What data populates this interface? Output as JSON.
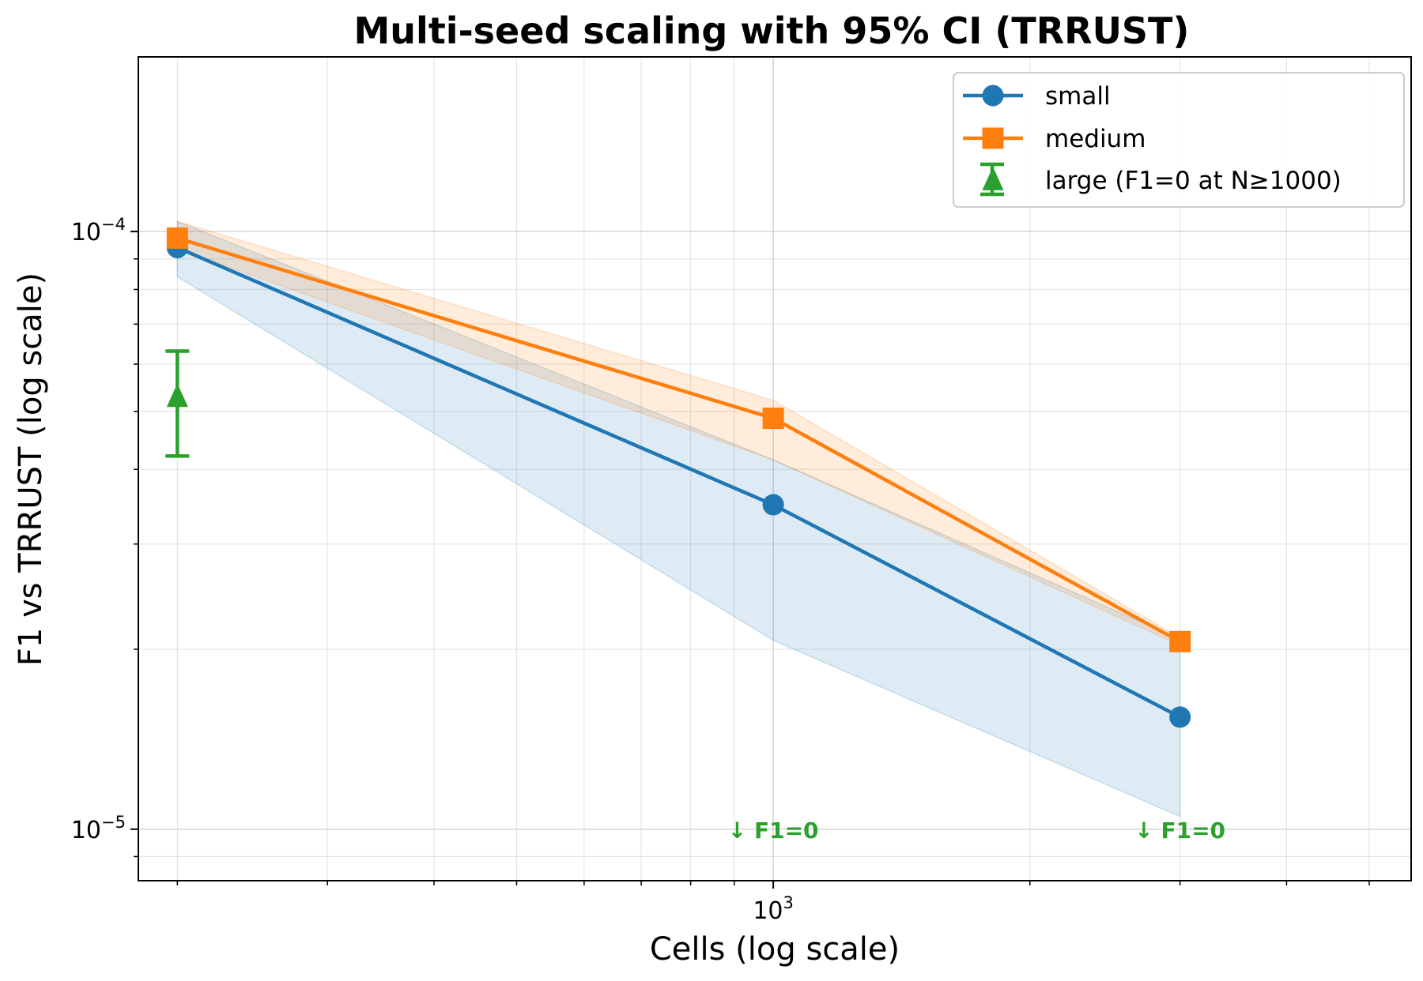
{
  "chart_data": {
    "type": "line",
    "title": "Multi-seed scaling with 95% CI (TRRUST)",
    "xlabel": "Cells (log scale)",
    "ylabel": "F1 vs TRRUST (log scale)",
    "xscale": "log",
    "yscale": "log",
    "xlim": [
      180,
      5600
    ],
    "ylim": [
      8.2e-06,
      0.000196
    ],
    "grid": true,
    "legend_position": "top-right",
    "x_ticks": [
      {
        "value": 1000,
        "base": "10",
        "exp": "3"
      }
    ],
    "y_ticks": [
      {
        "value": 1e-05,
        "base": "10",
        "exp": "−5"
      },
      {
        "value": 0.0001,
        "base": "10",
        "exp": "−4"
      }
    ],
    "series": [
      {
        "name": "small",
        "color": "#1f77b4",
        "marker": "circle",
        "x": [
          200,
          1000,
          3000
        ],
        "y": [
          9.4e-05,
          3.49e-05,
          1.54e-05
        ],
        "ci_low": [
          8.4e-05,
          2.07e-05,
          1.05e-05
        ],
        "ci_high": [
          0.000104,
          4.15e-05,
          2.08e-05
        ]
      },
      {
        "name": "medium",
        "color": "#ff7f0e",
        "marker": "square",
        "x": [
          200,
          1000,
          3000
        ],
        "y": [
          9.75e-05,
          4.87e-05,
          2.06e-05
        ],
        "ci_low": [
          9.35e-05,
          4.15e-05,
          2.03e-05
        ],
        "ci_high": [
          0.000104,
          5.22e-05,
          2.09e-05
        ]
      },
      {
        "name": "large (F1=0 at N≥1000)",
        "color": "#2ca02c",
        "marker": "triangle",
        "x": [
          200
        ],
        "y": [
          5.29e-05
        ],
        "err_low": [
          4.21e-05
        ],
        "err_high": [
          6.31e-05
        ]
      }
    ],
    "annotations": [
      {
        "text": "↓ F1=0",
        "x": 1000,
        "y": 1e-05,
        "color": "#2ca02c"
      },
      {
        "text": "↓ F1=0",
        "x": 3000,
        "y": 1e-05,
        "color": "#2ca02c"
      }
    ]
  }
}
